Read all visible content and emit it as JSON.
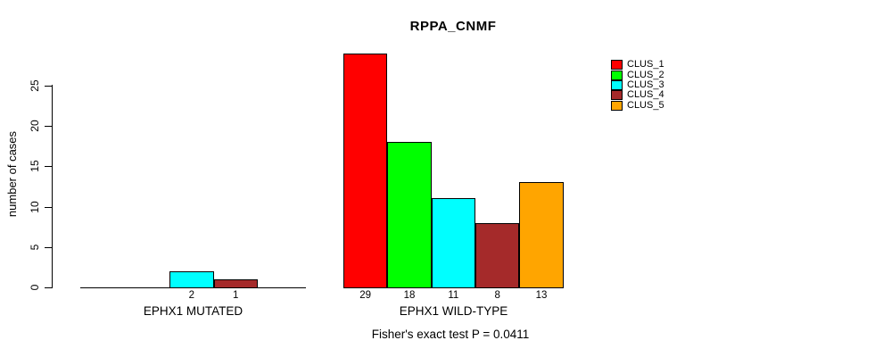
{
  "title": "RPPA_CNMF",
  "colors": {
    "CLUS_1": "#ff0000",
    "CLUS_2": "#00ff00",
    "CLUS_3": "#00ffff",
    "CLUS_4": "#a52a2a",
    "CLUS_5": "#ffa500"
  },
  "legend": {
    "entries": [
      {
        "label": "CLUS_1",
        "color": "#ff0000"
      },
      {
        "label": "CLUS_2",
        "color": "#00ff00"
      },
      {
        "label": "CLUS_3",
        "color": "#00ffff"
      },
      {
        "label": "CLUS_4",
        "color": "#a52a2a"
      },
      {
        "label": "CLUS_5",
        "color": "#ffa500"
      }
    ]
  },
  "chart_data": {
    "type": "bar",
    "title": "RPPA_CNMF",
    "ylabel": "number of cases",
    "ylim": [
      0,
      25
    ],
    "yticks": [
      0,
      5,
      10,
      15,
      20,
      25
    ],
    "grid": false,
    "legend_position": "top-right",
    "series": [
      "CLUS_1",
      "CLUS_2",
      "CLUS_3",
      "CLUS_4",
      "CLUS_5"
    ],
    "groups": [
      {
        "label": "EPHX1 MUTATED",
        "values": [
          0,
          0,
          2,
          1,
          0
        ],
        "bar_labels": [
          "",
          "",
          "2",
          "1",
          ""
        ]
      },
      {
        "label": "EPHX1 WILD-TYPE",
        "values": [
          29,
          18,
          11,
          8,
          13
        ],
        "bar_labels": [
          "29",
          "18",
          "11",
          "8",
          "13"
        ]
      }
    ],
    "annotation": "Fisher's exact test P = 0.0411"
  }
}
